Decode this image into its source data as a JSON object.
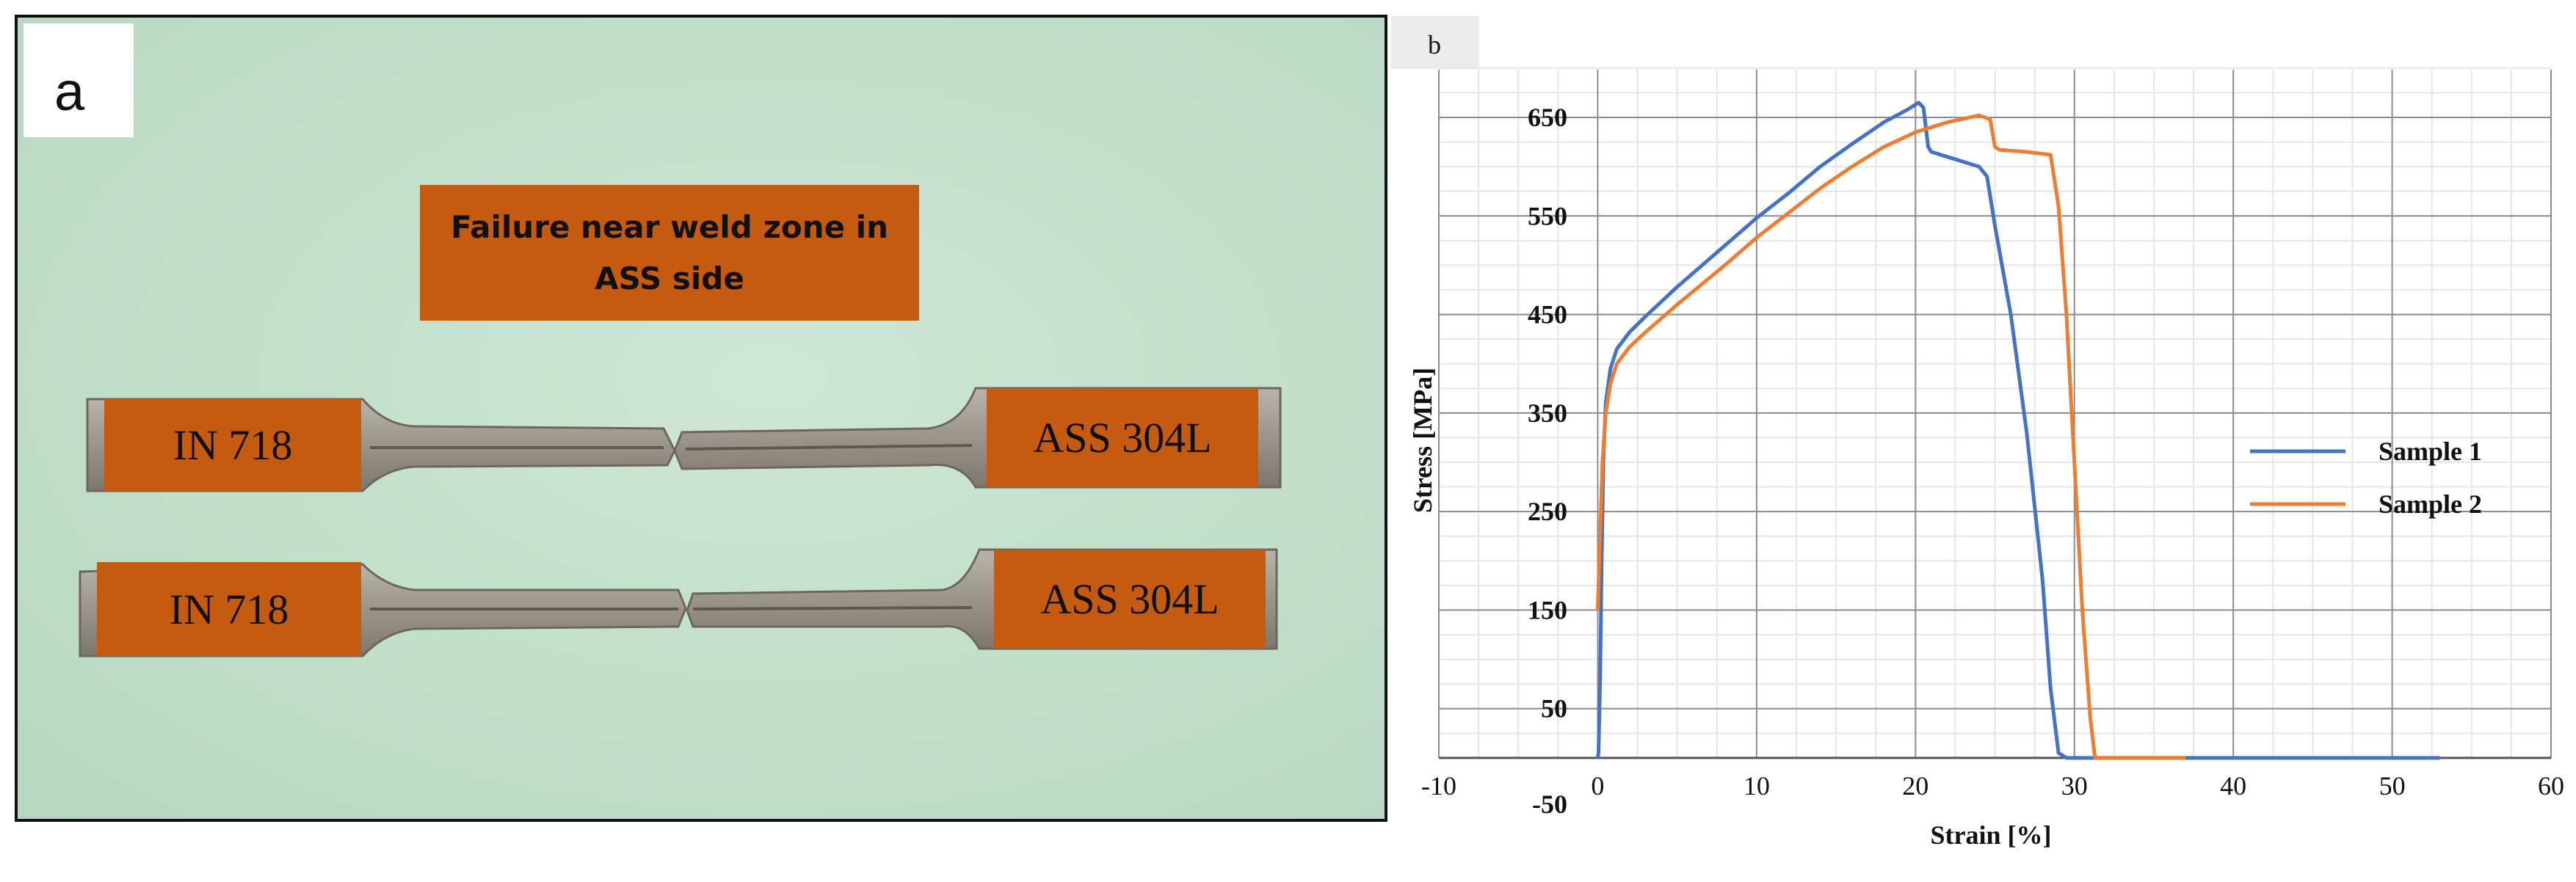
{
  "panel_a": {
    "letter": "a",
    "caption_line1": "Failure near weld zone in",
    "caption_line2": "ASS side",
    "specimens": [
      {
        "left_label": "IN 718",
        "right_label": "ASS 304L"
      },
      {
        "left_label": "IN 718",
        "right_label": "ASS 304L"
      }
    ],
    "colors": {
      "label_fill": "#c55a11",
      "background": "#c3e0cb",
      "metal": "#9a958d"
    }
  },
  "panel_b": {
    "letter": "b"
  },
  "chart_data": {
    "type": "line",
    "xlabel": "Strain [%]",
    "ylabel": "Stress  [MPa]",
    "xlim": [
      -10,
      60
    ],
    "ylim": [
      -50,
      700
    ],
    "x_ticks": [
      -10,
      0,
      10,
      20,
      30,
      40,
      50,
      60
    ],
    "y_ticks": [
      -50,
      50,
      150,
      250,
      350,
      450,
      550,
      650
    ],
    "grid": true,
    "legend_position": "right",
    "series": [
      {
        "name": "Sample 1",
        "color": "#4472c4",
        "points": [
          [
            0,
            0
          ],
          [
            0.05,
            5
          ],
          [
            0.15,
            80
          ],
          [
            0.25,
            200
          ],
          [
            0.35,
            300
          ],
          [
            0.5,
            360
          ],
          [
            0.8,
            395
          ],
          [
            1.2,
            415
          ],
          [
            2,
            432
          ],
          [
            3,
            448
          ],
          [
            5,
            478
          ],
          [
            8,
            520
          ],
          [
            10,
            548
          ],
          [
            12,
            573
          ],
          [
            14,
            600
          ],
          [
            16,
            623
          ],
          [
            18,
            645
          ],
          [
            19.5,
            658
          ],
          [
            20.2,
            665
          ],
          [
            20.5,
            660
          ],
          [
            20.8,
            620
          ],
          [
            21,
            615
          ],
          [
            22,
            610
          ],
          [
            24,
            600
          ],
          [
            24.5,
            590
          ],
          [
            25,
            540
          ],
          [
            26,
            450
          ],
          [
            27,
            330
          ],
          [
            28,
            180
          ],
          [
            28.5,
            70
          ],
          [
            29,
            5
          ],
          [
            29.5,
            0
          ],
          [
            35,
            0
          ],
          [
            45,
            0
          ],
          [
            53,
            0
          ]
        ]
      },
      {
        "name": "Sample 2",
        "color": "#ed7d31",
        "points": [
          [
            0,
            150
          ],
          [
            0.15,
            230
          ],
          [
            0.3,
            300
          ],
          [
            0.5,
            350
          ],
          [
            0.8,
            380
          ],
          [
            1.2,
            400
          ],
          [
            2,
            417
          ],
          [
            3,
            432
          ],
          [
            5,
            460
          ],
          [
            8,
            500
          ],
          [
            10,
            528
          ],
          [
            12,
            553
          ],
          [
            14,
            578
          ],
          [
            16,
            600
          ],
          [
            18,
            620
          ],
          [
            20,
            635
          ],
          [
            22,
            645
          ],
          [
            24,
            652
          ],
          [
            24.7,
            648
          ],
          [
            25,
            620
          ],
          [
            25.3,
            617
          ],
          [
            27,
            615
          ],
          [
            28.5,
            612
          ],
          [
            29,
            560
          ],
          [
            29.5,
            450
          ],
          [
            30,
            300
          ],
          [
            30.5,
            150
          ],
          [
            31,
            40
          ],
          [
            31.3,
            0
          ],
          [
            37,
            0
          ]
        ]
      }
    ]
  }
}
